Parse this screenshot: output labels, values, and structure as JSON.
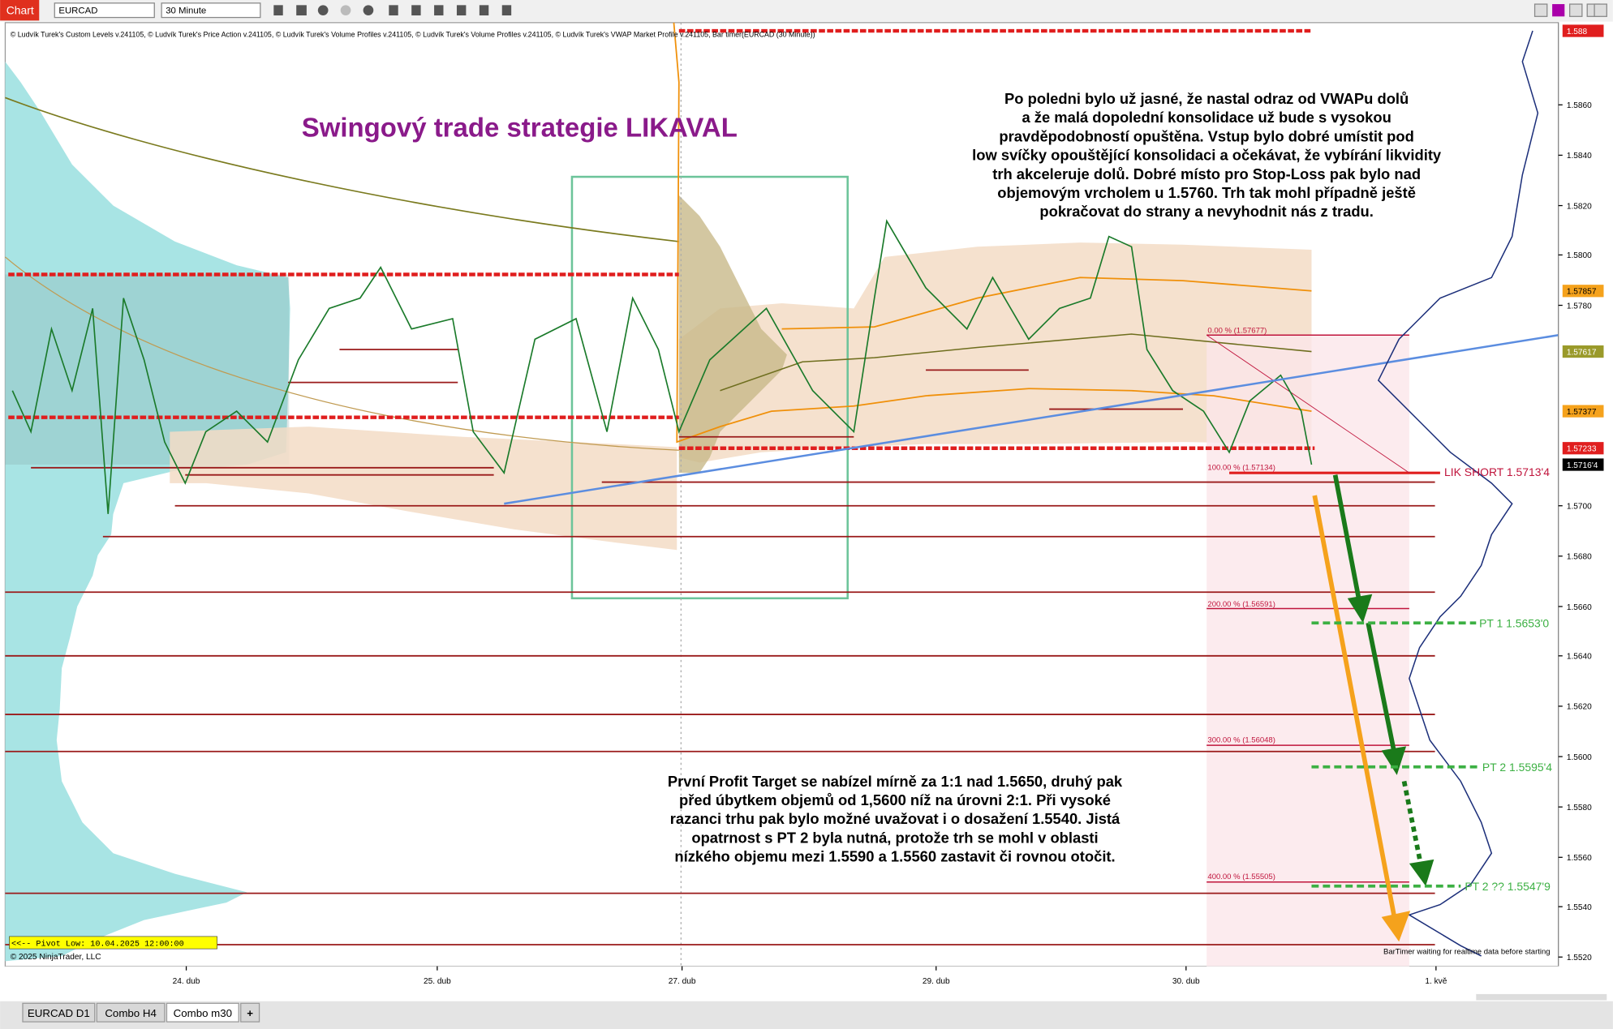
{
  "toolbar": {
    "tab": "Chart",
    "instrument": "EURCAD",
    "interval": "30 Minute"
  },
  "indicator_text": "© Ludvík Turek's Custom Levels v.241105, © Ludvík Turek's Price Action v.241105, © Ludvík Turek's Volume Profiles v.241105, © Ludvík Turek's Volume Profiles v.241105, © Ludvík Turek's VWAP Market Profile v.241105, Bar timer(EURCAD (30 Minute))",
  "title": "Swingový trade strategie LIKAVAL",
  "annotation_1": [
    "Po poledni bylo už jasné, že nastal odraz od VWAPu dolů",
    "a že malá dopolední konsolidace už bude s vysokou",
    "pravděpodobností opuštěna. Vstup bylo dobré umístit pod",
    "low svíčky opouštějící konsolidaci a očekávat, že vybírání likvidity",
    "trh akceleruje dolů. Dobré místo pro Stop-Loss pak bylo nad",
    "objemovým vrcholem u 1.5760. Trh tak mohl případně ještě",
    "pokračovat do strany a nevyhodnit nás z tradu."
  ],
  "annotation_2": [
    "První Profit Target se nabízel mírně za 1:1 nad 1.5650, druhý pak",
    "před úbytkem objemů od 1,5600 níž na úrovni 2:1. Při vysoké",
    "razanci trhu pak bylo možné uvažovat i o dosažení 1.5540. Jistá",
    "opatrnost s PT 2 byla nutná, protože trh se mohl v oblasti",
    "nízkého objemu mezi 1.5590 a 1.5560 zastavit či rovnou otočit."
  ],
  "fib_labels": [
    "0.00 % (1.57677)",
    "100.00 % (1.57134)",
    "200.00 % (1.56591)",
    "300.00 % (1.56048)",
    "400.00 % (1.55505)"
  ],
  "trade_labels": {
    "entry": "LIK SHORT 1.5713'4",
    "pt1": "PT 1  1.5653'0",
    "pt2": "PT 2 1.5595'4",
    "pt3": "PT 2 ?? 1.5547'9"
  },
  "price_axis": [
    "1.5860",
    "1.5840",
    "1.5820",
    "1.5800",
    "1.5780",
    "1.5700",
    "1.5680",
    "1.5660",
    "1.5640",
    "1.5620",
    "1.5600",
    "1.5580",
    "1.5560",
    "1.5540",
    "1.5520"
  ],
  "price_tags": [
    "1.588",
    "1.57857",
    "1.57617",
    "1.57377",
    "1.57233",
    "1.5716'4"
  ],
  "time_axis": [
    "24. dub",
    "25. dub",
    "27. dub",
    "29. dub",
    "30. dub",
    "1. kvě"
  ],
  "pivot_label": "<<-- Pivot Low: 10.04.2025 12:00:00",
  "copyright": "© 2025 NinjaTrader, LLC",
  "bar_timer": "BarTimer waiting for realtime data before starting",
  "tabs": [
    "EURCAD D1",
    "Combo H4",
    "Combo m30",
    "+"
  ]
}
